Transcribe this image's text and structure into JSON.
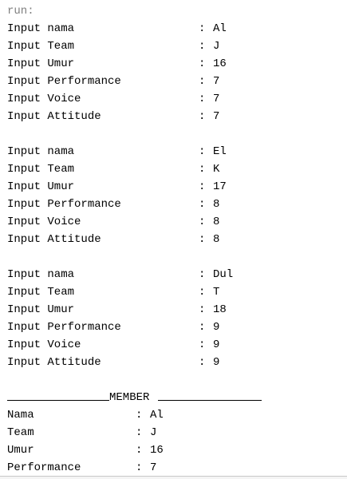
{
  "console": {
    "run_label": "run:",
    "separator": ":",
    "inputs": [
      [
        {
          "label": "Input nama",
          "value": "Al"
        },
        {
          "label": "Input Team",
          "value": "J"
        },
        {
          "label": "Input Umur",
          "value": "16"
        },
        {
          "label": "Input Performance",
          "value": "7"
        },
        {
          "label": "Input Voice",
          "value": "7"
        },
        {
          "label": "Input Attitude",
          "value": "7"
        }
      ],
      [
        {
          "label": "Input nama",
          "value": "El"
        },
        {
          "label": "Input Team",
          "value": "K"
        },
        {
          "label": "Input Umur",
          "value": "17"
        },
        {
          "label": "Input Performance",
          "value": "8"
        },
        {
          "label": "Input Voice",
          "value": "8"
        },
        {
          "label": "Input Attitude",
          "value": "8"
        }
      ],
      [
        {
          "label": "Input nama",
          "value": "Dul"
        },
        {
          "label": "Input Team",
          "value": "T"
        },
        {
          "label": "Input Umur",
          "value": "18"
        },
        {
          "label": "Input Performance",
          "value": "9"
        },
        {
          "label": "Input Voice",
          "value": "9"
        },
        {
          "label": "Input Attitude",
          "value": "9"
        }
      ]
    ],
    "member_header": "MEMBER",
    "member": [
      {
        "label": "Nama",
        "value": "Al"
      },
      {
        "label": "Team",
        "value": "J"
      },
      {
        "label": "Umur",
        "value": "16"
      },
      {
        "label": "Performance",
        "value": "7"
      }
    ]
  }
}
